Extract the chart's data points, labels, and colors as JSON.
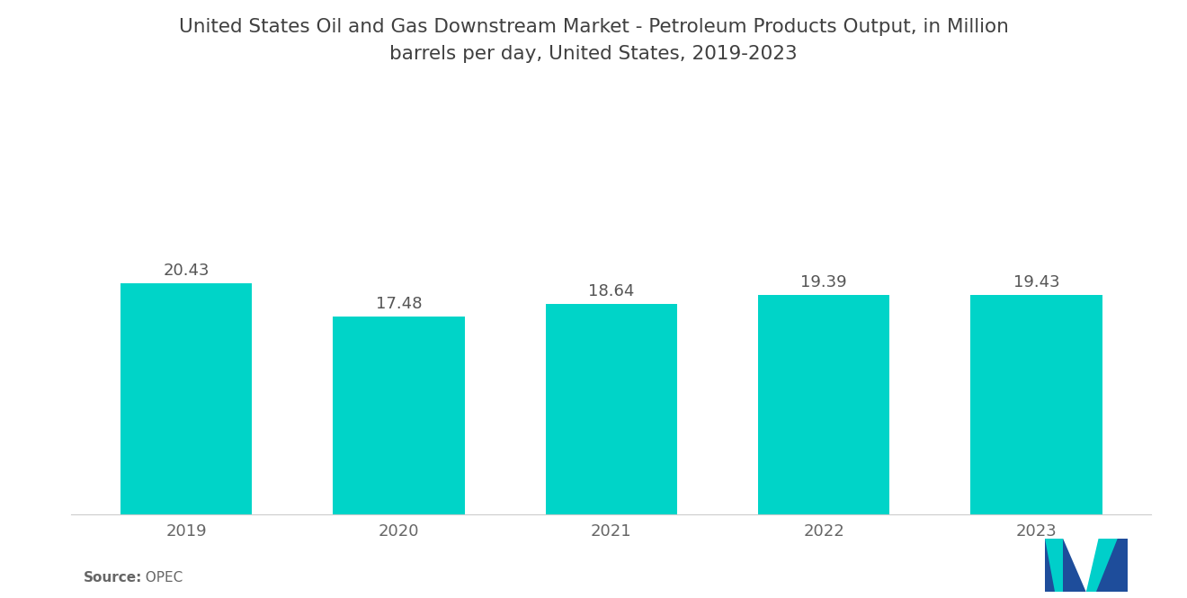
{
  "title": "United States Oil and Gas Downstream Market - Petroleum Products Output, in Million\nbarrels per day, United States, 2019-2023",
  "categories": [
    "2019",
    "2020",
    "2021",
    "2022",
    "2023"
  ],
  "values": [
    20.43,
    17.48,
    18.64,
    19.39,
    19.43
  ],
  "bar_color": "#00D4C8",
  "value_label_color": "#555555",
  "title_color": "#404040",
  "axis_label_color": "#666666",
  "source_label": "Source:",
  "source_value": "  OPEC",
  "background_color": "#ffffff",
  "ylim": [
    0,
    36
  ],
  "bar_width": 0.62,
  "title_fontsize": 15.5,
  "label_fontsize": 13,
  "tick_fontsize": 13,
  "source_fontsize": 11,
  "logo_blue": "#1E4D9B",
  "logo_teal": "#00CFCA"
}
